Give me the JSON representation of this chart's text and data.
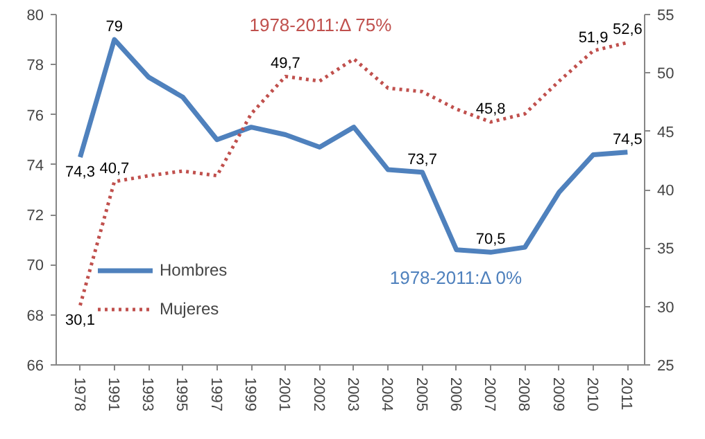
{
  "chart_data": {
    "type": "line",
    "categories": [
      "1978",
      "1991",
      "1993",
      "1995",
      "1997",
      "1999",
      "2001",
      "2002",
      "2003",
      "2004",
      "2005",
      "2006",
      "2007",
      "2008",
      "2009",
      "2010",
      "2011"
    ],
    "series": [
      {
        "name": "Hombres",
        "color": "#4f81bd",
        "line_style": "solid",
        "values": [
          74.3,
          79,
          77.5,
          76.7,
          75.0,
          75.5,
          75.2,
          74.7,
          75.5,
          73.8,
          73.7,
          70.6,
          70.5,
          70.7,
          72.9,
          74.4,
          74.5
        ],
        "value_labels": [
          "74,3",
          "79",
          null,
          null,
          null,
          null,
          null,
          null,
          null,
          null,
          "73,7",
          null,
          "70,5",
          null,
          null,
          null,
          "74,5"
        ]
      },
      {
        "name": "Mujeres",
        "color": "#c0504d",
        "line_style": "dotted",
        "axis": "y2",
        "values": [
          30.1,
          40.7,
          41.2,
          41.6,
          41.2,
          46.5,
          49.7,
          49.3,
          51.2,
          48.7,
          48.4,
          46.9,
          45.8,
          46.5,
          49.3,
          51.9,
          52.6
        ],
        "value_labels": [
          "30,1",
          "40,7",
          null,
          null,
          null,
          null,
          "49,7",
          null,
          null,
          null,
          null,
          null,
          "45,8",
          null,
          null,
          "51,9",
          "52,6"
        ]
      }
    ],
    "ylim": [
      66,
      80
    ],
    "yticks": [
      66,
      68,
      70,
      72,
      74,
      76,
      78,
      80
    ],
    "y2lim": [
      25,
      55
    ],
    "y2ticks": [
      25,
      30,
      35,
      40,
      45,
      50,
      55
    ],
    "annotations": [
      "1978-2011:Δ 0%",
      "1978-2011:Δ 75%"
    ],
    "legend": "bottom left",
    "grid": false,
    "marker": "none"
  }
}
